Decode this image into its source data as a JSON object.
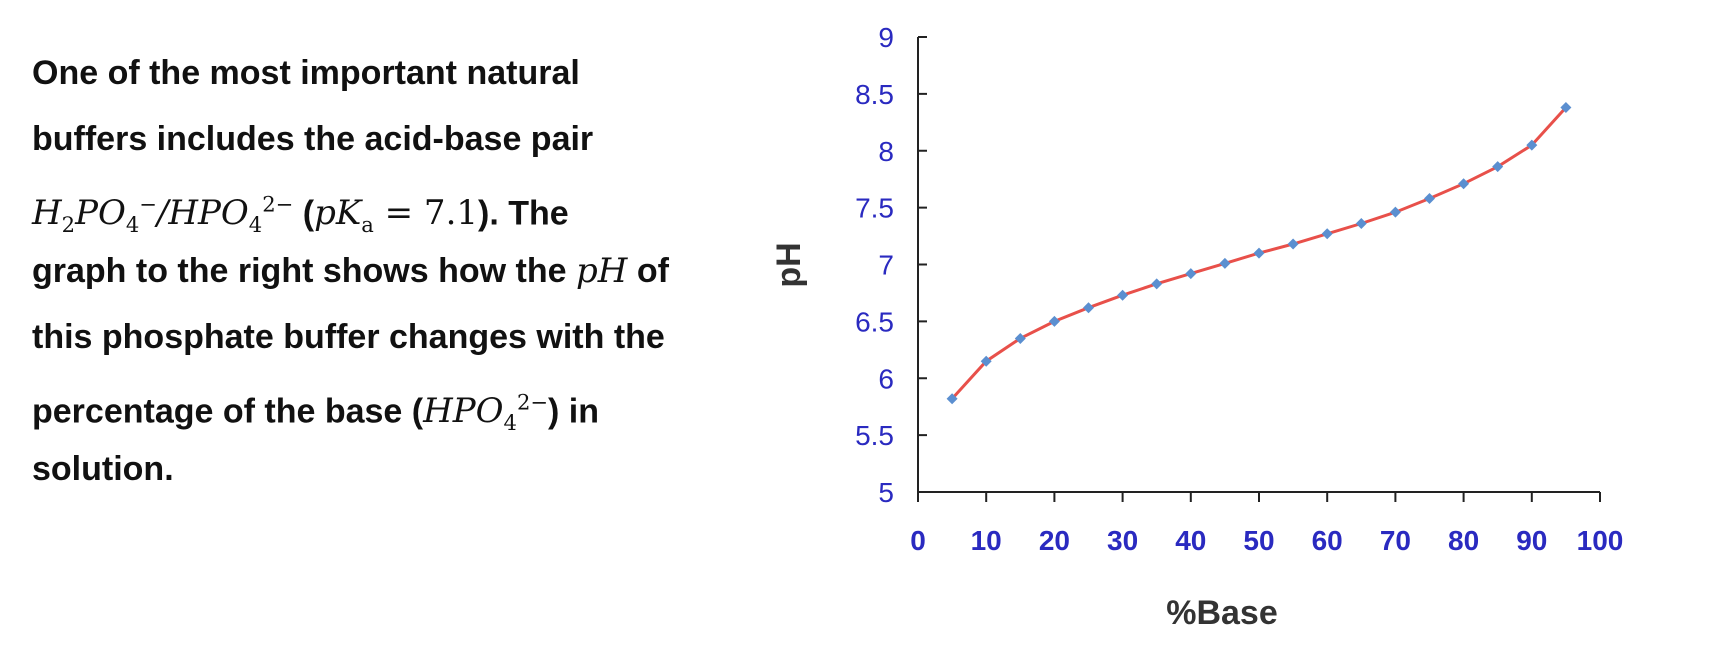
{
  "description": {
    "line1": "One of the most important natural",
    "line2": "buffers includes the acid-base pair",
    "line3_after": "). The",
    "line4_before": "graph to the right shows how the ",
    "line4_after": " of",
    "line5": "this phosphate buffer changes with the",
    "line6_before": "percentage of the base (",
    "line6_after": ") in",
    "line7": "solution."
  },
  "colors": {
    "line": "#e8504a",
    "marker": "#5b8fd0",
    "tick_text": "#2a2ac0",
    "axis": "#222222"
  },
  "chart_data": {
    "type": "line",
    "title": "",
    "xlabel": "%Base",
    "ylabel": "pH",
    "xlim": [
      0,
      100
    ],
    "ylim": [
      5,
      9
    ],
    "x_ticks": [
      "0",
      "10",
      "20",
      "30",
      "40",
      "50",
      "60",
      "70",
      "80",
      "90",
      "100"
    ],
    "y_ticks": [
      "5",
      "5.5",
      "6",
      "6.5",
      "7",
      "7.5",
      "8",
      "8.5",
      "9"
    ],
    "grid": false,
    "legend": "none",
    "series": [
      {
        "x": [
          5,
          10,
          15,
          20,
          25,
          30,
          35,
          40,
          45,
          50,
          55,
          60,
          65,
          70,
          75,
          80,
          85,
          90,
          95
        ],
        "y": [
          5.82,
          6.15,
          6.35,
          6.5,
          6.62,
          6.73,
          6.83,
          6.92,
          7.01,
          7.1,
          7.18,
          7.27,
          7.36,
          7.46,
          7.58,
          7.71,
          7.86,
          8.05,
          8.38
        ]
      }
    ]
  }
}
